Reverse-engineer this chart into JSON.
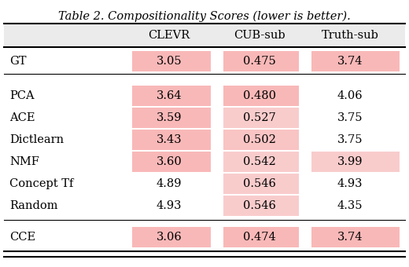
{
  "title": "Table 2. Compositionality Scores (lower is better).",
  "col_headers": [
    "CLEVR",
    "CUB-sub",
    "Truth-sub"
  ],
  "rows": [
    {
      "label": "GT",
      "values": [
        "3.05",
        "0.475",
        "3.74"
      ],
      "group": "gt"
    },
    {
      "label": "PCA",
      "values": [
        "3.64",
        "0.480",
        "4.06"
      ],
      "group": "mid"
    },
    {
      "label": "ACE",
      "values": [
        "3.59",
        "0.527",
        "3.75"
      ],
      "group": "mid"
    },
    {
      "label": "Dictlearn",
      "values": [
        "3.43",
        "0.502",
        "3.75"
      ],
      "group": "mid"
    },
    {
      "label": "NMF",
      "values": [
        "3.60",
        "0.542",
        "3.99"
      ],
      "group": "mid"
    },
    {
      "label": "Concept Tf",
      "values": [
        "4.89",
        "0.546",
        "4.93"
      ],
      "group": "mid"
    },
    {
      "label": "Random",
      "values": [
        "4.93",
        "0.546",
        "4.35"
      ],
      "group": "mid"
    },
    {
      "label": "CCE",
      "values": [
        "3.06",
        "0.474",
        "3.74"
      ],
      "group": "cce"
    }
  ],
  "cell_colors": {
    "GT": [
      "#f9b8b8",
      "#f9b8b8",
      "#f9b8b8"
    ],
    "PCA": [
      "#f9b8b8",
      "#f9b8b8",
      "#ffffff"
    ],
    "ACE": [
      "#f9b8b8",
      "#f9cccc",
      "#ffffff"
    ],
    "Dictlearn": [
      "#f9b8b8",
      "#f9c4c4",
      "#ffffff"
    ],
    "NMF": [
      "#f9b8b8",
      "#f9cccc",
      "#f9cccc"
    ],
    "Concept Tf": [
      "#ffffff",
      "#f9cccc",
      "#ffffff"
    ],
    "Random": [
      "#ffffff",
      "#f9cccc",
      "#ffffff"
    ],
    "CCE": [
      "#f9b8b8",
      "#f9b8b8",
      "#f9b8b8"
    ]
  },
  "header_bg": "#ebebeb",
  "bg_color": "#ffffff",
  "title_fontsize": 10.5,
  "cell_fontsize": 10.5,
  "header_fontsize": 10.5
}
